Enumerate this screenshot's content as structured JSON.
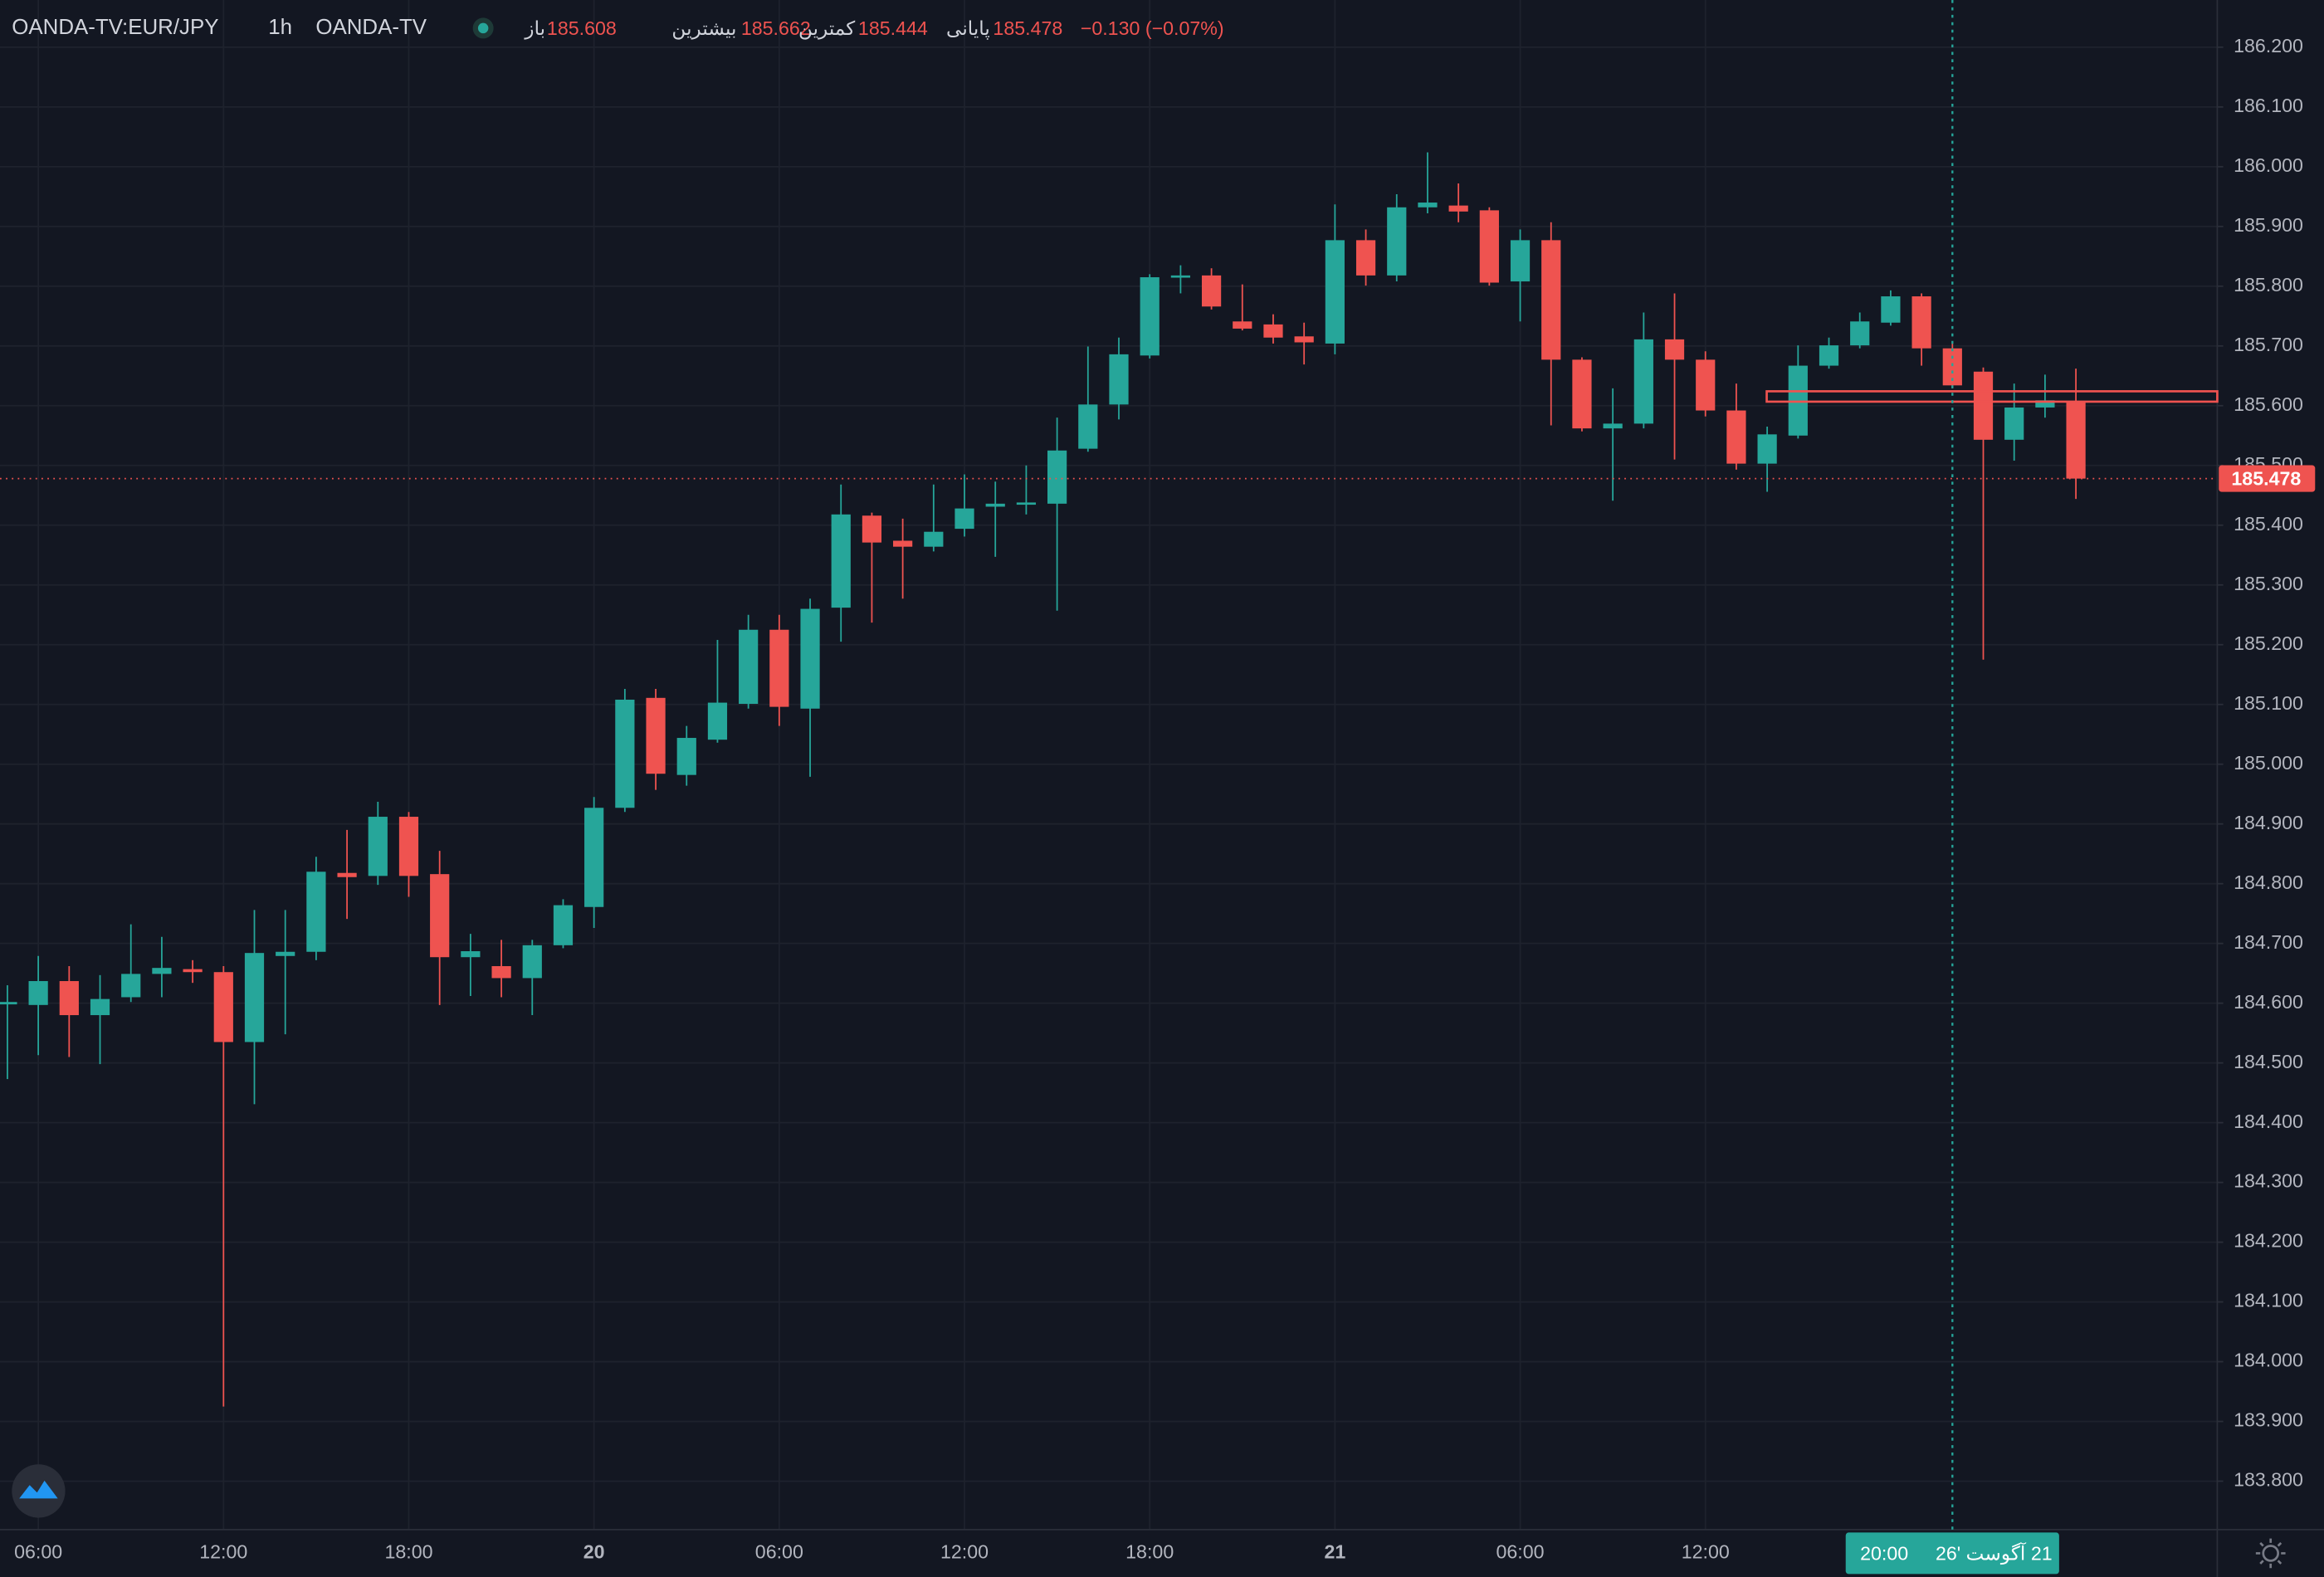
{
  "header": {
    "symbol": "OANDA-TV:EUR/JPY",
    "interval": "1h",
    "exchange": "OANDA-TV",
    "open_label": "باز",
    "high_label": "بیشترین",
    "low_label": "کمترین",
    "close_label": "پایانی",
    "change": "−0.130 (−0.07%)"
  },
  "crosshair": {
    "date": "21 آگوست '26",
    "time": "20:00"
  },
  "chart_data": {
    "type": "candlestick",
    "categories": [
      null,
      "06:00",
      null,
      null,
      null,
      null,
      null,
      "12:00",
      null,
      null,
      null,
      null,
      null,
      "18:00",
      null,
      null,
      null,
      null,
      null,
      "20",
      null,
      null,
      null,
      null,
      null,
      "06:00",
      null,
      null,
      null,
      null,
      null,
      "12:00",
      null,
      null,
      null,
      null,
      null,
      "18:00",
      null,
      null,
      null,
      null,
      null,
      "21",
      null,
      null,
      null,
      null,
      null,
      "06:00",
      null,
      null,
      null,
      null,
      null,
      "12:00",
      null,
      null,
      null,
      null,
      null,
      null,
      null,
      null,
      null,
      null,
      null,
      null
    ],
    "open": [
      184.598,
      184.597,
      184.637,
      184.58,
      184.61,
      184.649,
      184.657,
      184.652,
      184.535,
      184.679,
      184.686,
      184.818,
      184.813,
      184.912,
      184.816,
      184.677,
      184.662,
      184.642,
      184.697,
      184.761,
      184.927,
      185.111,
      184.982,
      185.041,
      185.101,
      185.225,
      185.093,
      185.262,
      185.416,
      185.374,
      185.364,
      185.394,
      185.431,
      185.436,
      185.436,
      185.528,
      185.602,
      185.684,
      185.815,
      185.818,
      185.741,
      185.736,
      185.716,
      185.704,
      185.877,
      185.818,
      185.932,
      185.935,
      185.927,
      185.808,
      185.877,
      185.677,
      185.562,
      185.57,
      185.711,
      185.677,
      185.592,
      185.503,
      185.55,
      185.667,
      185.701,
      185.739,
      185.783,
      185.696,
      185.657,
      185.543,
      185.597,
      185.608
    ],
    "high": [
      184.63,
      184.679,
      184.662,
      184.647,
      184.732,
      184.711,
      184.672,
      184.662,
      184.756,
      184.756,
      184.845,
      184.89,
      184.937,
      184.92,
      184.855,
      184.716,
      184.706,
      184.706,
      184.774,
      184.945,
      185.126,
      185.126,
      185.064,
      185.208,
      185.25,
      185.25,
      185.277,
      185.468,
      185.421,
      185.411,
      185.468,
      185.485,
      185.473,
      185.5,
      185.58,
      185.699,
      185.714,
      185.82,
      185.835,
      185.83,
      185.803,
      185.753,
      185.739,
      185.937,
      185.895,
      185.954,
      186.024,
      185.972,
      185.932,
      185.895,
      185.907,
      185.681,
      185.629,
      185.756,
      185.788,
      185.691,
      185.637,
      185.565,
      185.701,
      185.714,
      185.756,
      185.793,
      185.788,
      185.704,
      185.664,
      185.637,
      185.652,
      185.662
    ],
    "low": [
      184.473,
      184.513,
      184.51,
      184.498,
      184.602,
      184.61,
      184.634,
      183.925,
      184.431,
      184.548,
      184.672,
      184.741,
      184.798,
      184.778,
      184.597,
      184.612,
      184.61,
      184.58,
      184.692,
      184.726,
      184.92,
      184.957,
      184.964,
      185.036,
      185.093,
      185.064,
      184.979,
      185.205,
      185.237,
      185.277,
      185.356,
      185.381,
      185.347,
      185.418,
      185.257,
      185.523,
      185.577,
      185.679,
      185.788,
      185.761,
      185.726,
      185.704,
      185.669,
      185.686,
      185.801,
      185.808,
      185.922,
      185.907,
      185.801,
      185.741,
      185.567,
      185.557,
      185.441,
      185.562,
      185.51,
      185.582,
      185.493,
      185.456,
      185.545,
      185.662,
      185.696,
      185.734,
      185.667,
      185.629,
      185.175,
      185.508,
      185.58,
      185.444
    ],
    "close": [
      184.602,
      184.637,
      184.58,
      184.607,
      184.649,
      184.659,
      184.652,
      184.535,
      184.684,
      184.686,
      184.82,
      184.811,
      184.912,
      184.813,
      184.677,
      184.687,
      184.642,
      184.697,
      184.764,
      184.927,
      185.108,
      184.984,
      185.044,
      185.103,
      185.225,
      185.096,
      185.26,
      185.418,
      185.371,
      185.364,
      185.389,
      185.428,
      185.436,
      185.438,
      185.525,
      185.602,
      185.686,
      185.815,
      185.818,
      185.766,
      185.729,
      185.714,
      185.706,
      185.877,
      185.818,
      185.932,
      185.94,
      185.925,
      185.806,
      185.877,
      185.677,
      185.562,
      185.57,
      185.711,
      185.677,
      185.592,
      185.503,
      185.552,
      185.667,
      185.701,
      185.741,
      185.783,
      185.696,
      185.634,
      185.543,
      185.597,
      185.609,
      185.478
    ],
    "up_color": "#26a69a",
    "down_color": "#ef5350",
    "ylim": [
      183.719,
      186.279
    ],
    "yticks": [
      {
        "value": 183.8,
        "label": "183.800"
      },
      {
        "value": 183.9,
        "label": "183.900"
      },
      {
        "value": 184.0,
        "label": "184.000"
      },
      {
        "value": 184.1,
        "label": "184.100"
      },
      {
        "value": 184.2,
        "label": "184.200"
      },
      {
        "value": 184.3,
        "label": "184.300"
      },
      {
        "value": 184.4,
        "label": "184.400"
      },
      {
        "value": 184.5,
        "label": "184.500"
      },
      {
        "value": 184.6,
        "label": "184.600"
      },
      {
        "value": 184.7,
        "label": "184.700"
      },
      {
        "value": 184.8,
        "label": "184.800"
      },
      {
        "value": 184.9,
        "label": "184.900"
      },
      {
        "value": 185.0,
        "label": "185.000"
      },
      {
        "value": 185.1,
        "label": "185.100"
      },
      {
        "value": 185.2,
        "label": "185.200"
      },
      {
        "value": 185.3,
        "label": "185.300"
      },
      {
        "value": 185.4,
        "label": "185.400"
      },
      {
        "value": 185.5,
        "label": "185.500"
      },
      {
        "value": 185.6,
        "label": "185.600"
      },
      {
        "value": 185.7,
        "label": "185.700"
      },
      {
        "value": 185.8,
        "label": "185.800"
      },
      {
        "value": 185.9,
        "label": "185.900"
      },
      {
        "value": 186.0,
        "label": "186.000"
      },
      {
        "value": 186.1,
        "label": "186.100"
      },
      {
        "value": 186.2,
        "label": "186.200"
      }
    ],
    "grid": true
  }
}
